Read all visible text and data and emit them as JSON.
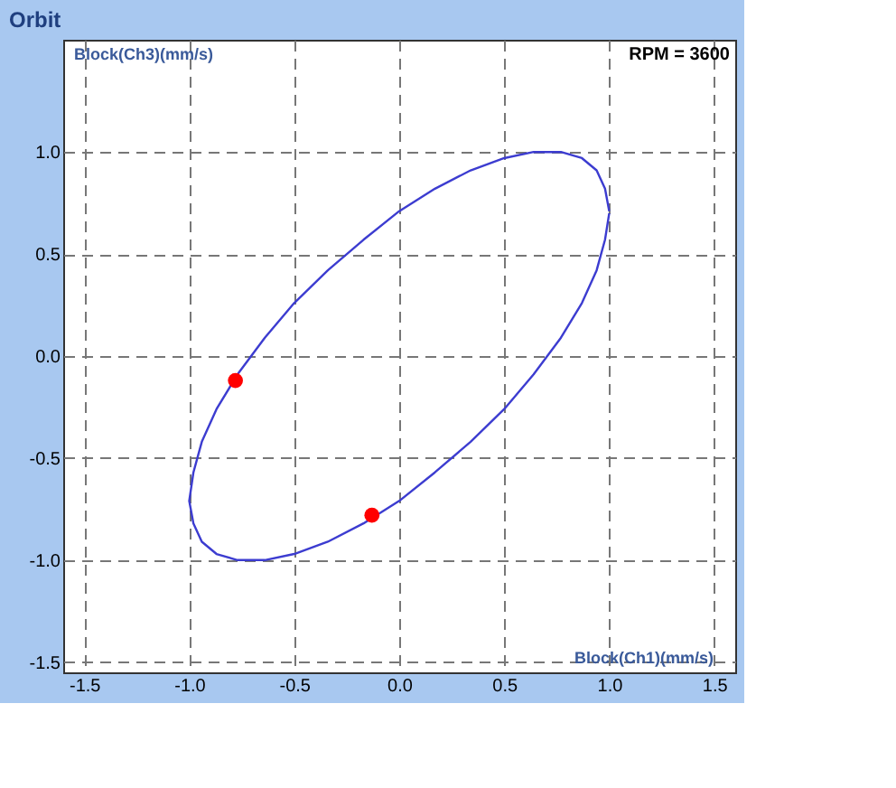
{
  "chart_data": {
    "type": "line",
    "title": "Orbit",
    "xlabel": "Block(Ch1)(mm/s)",
    "ylabel": "Block(Ch3)(mm/s)",
    "annotations": [
      "RPM = 3600"
    ],
    "xlim": [
      -1.6,
      1.6
    ],
    "ylim": [
      -1.55,
      1.55
    ],
    "xticks": [
      {
        "value": -1.5,
        "label": "-1.5"
      },
      {
        "value": -1.0,
        "label": "-1.0"
      },
      {
        "value": -0.5,
        "label": "-0.5"
      },
      {
        "value": 0.0,
        "label": "0.0"
      },
      {
        "value": 0.5,
        "label": "0.5"
      },
      {
        "value": 1.0,
        "label": "1.0"
      },
      {
        "value": 1.5,
        "label": "1.5"
      }
    ],
    "yticks": [
      {
        "value": -1.5,
        "label": "-1.5"
      },
      {
        "value": -1.0,
        "label": "-1.0"
      },
      {
        "value": -0.5,
        "label": "-0.5"
      },
      {
        "value": 0.0,
        "label": "0.0"
      },
      {
        "value": 0.5,
        "label": "0.5"
      },
      {
        "value": 1.0,
        "label": "1.0"
      }
    ],
    "grid": true,
    "series": [
      {
        "type": "line",
        "color": "#3c3cd0",
        "marker": "none",
        "x": [
          1.0,
          0.98,
          0.94,
          0.87,
          0.77,
          0.64,
          0.5,
          0.34,
          0.17,
          0.0,
          -0.17,
          -0.34,
          -0.5,
          -0.64,
          -0.77,
          -0.87,
          -0.94,
          -0.98,
          -1.0,
          -0.98,
          -0.94,
          -0.87,
          -0.77,
          -0.64,
          -0.5,
          -0.34,
          -0.17,
          0.0,
          0.17,
          0.34,
          0.5,
          0.64,
          0.77,
          0.87,
          0.94,
          0.98,
          1.0
        ],
        "values": [
          0.71,
          0.82,
          0.91,
          0.97,
          1.0,
          1.0,
          0.97,
          0.91,
          0.82,
          0.71,
          0.57,
          0.42,
          0.26,
          0.09,
          -0.09,
          -0.26,
          -0.42,
          -0.57,
          -0.71,
          -0.82,
          -0.91,
          -0.97,
          -1.0,
          -1.0,
          -0.97,
          -0.91,
          -0.82,
          -0.71,
          -0.57,
          -0.42,
          -0.26,
          -0.09,
          0.09,
          0.26,
          0.42,
          0.57,
          0.7
        ]
      },
      {
        "type": "scatter",
        "color": "#ff0000",
        "marker": "circle",
        "x": [
          -0.78,
          -0.13
        ],
        "values": [
          -0.12,
          -0.78
        ]
      }
    ]
  }
}
